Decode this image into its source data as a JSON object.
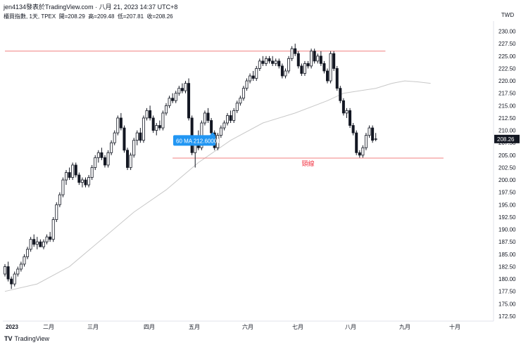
{
  "header": {
    "publisher": "jen4134發表於TradingView.com",
    "timestamp": "八月 21, 2023 14:37 UTC+8",
    "symbol": "櫃買指數, 1天, TPEX",
    "open_label": "開",
    "open": "208.29",
    "high_label": "高",
    "high": "209.48",
    "low_label": "低",
    "low": "207.81",
    "close_label": "收",
    "close": "208.26",
    "currency": "TWD"
  },
  "footer": {
    "brand": "TradingView",
    "brand_icon": "tradingview-logo-icon"
  },
  "colors": {
    "candle_up": "#ffffff",
    "candle_down": "#131722",
    "wick": "#131722",
    "ma": "#c8c8c8",
    "hline": "#f08080",
    "tooltip_bg": "#2196f3",
    "price_tag_bg": "#131722",
    "neckline_label": "#f23645",
    "grid": "#e0e3eb"
  },
  "chart_data": {
    "type": "candlestick",
    "x_axis_labels": [
      "2023",
      "二月",
      "三月",
      "四月",
      "五月",
      "六月",
      "七月",
      "八月",
      "九月",
      "十月"
    ],
    "ylim": [
      171.5,
      231.5
    ],
    "y_ticks": [
      "230.00",
      "227.50",
      "225.00",
      "222.50",
      "220.00",
      "217.50",
      "215.00",
      "212.50",
      "210.00",
      "207.50",
      "205.00",
      "202.50",
      "200.00",
      "197.50",
      "195.00",
      "192.50",
      "190.00",
      "187.50",
      "185.00",
      "182.50",
      "180.00",
      "177.50",
      "175.00",
      "172.50"
    ],
    "last_price": "208.26",
    "ohlc": [
      [
        181.0,
        183.0,
        180.5,
        182.5
      ],
      [
        182.5,
        183.5,
        179.5,
        180.0
      ],
      [
        180.0,
        180.5,
        178.0,
        179.0
      ],
      [
        179.0,
        181.5,
        178.5,
        181.0
      ],
      [
        181.0,
        182.5,
        180.5,
        182.0
      ],
      [
        182.0,
        183.5,
        181.5,
        183.0
      ],
      [
        183.0,
        185.0,
        182.5,
        184.5
      ],
      [
        184.5,
        186.5,
        184.0,
        186.0
      ],
      [
        186.0,
        188.5,
        185.5,
        188.0
      ],
      [
        188.0,
        189.0,
        186.5,
        187.0
      ],
      [
        187.0,
        188.5,
        186.0,
        187.5
      ],
      [
        187.5,
        188.0,
        186.5,
        186.5
      ],
      [
        186.5,
        188.0,
        186.0,
        187.5
      ],
      [
        187.5,
        189.0,
        187.0,
        188.5
      ],
      [
        188.5,
        189.5,
        187.5,
        188.0
      ],
      [
        188.0,
        192.5,
        187.5,
        192.0
      ],
      [
        192.0,
        195.5,
        191.5,
        195.0
      ],
      [
        195.0,
        197.5,
        194.5,
        197.0
      ],
      [
        197.0,
        200.5,
        196.5,
        200.0
      ],
      [
        200.0,
        202.0,
        199.0,
        201.5
      ],
      [
        201.5,
        202.5,
        200.0,
        200.5
      ],
      [
        200.5,
        203.5,
        200.0,
        203.0
      ],
      [
        203.0,
        203.5,
        200.5,
        201.0
      ],
      [
        201.0,
        201.5,
        199.0,
        199.5
      ],
      [
        199.5,
        200.5,
        198.5,
        200.0
      ],
      [
        200.0,
        200.5,
        198.5,
        199.0
      ],
      [
        199.0,
        201.0,
        198.5,
        200.5
      ],
      [
        200.5,
        203.0,
        200.0,
        202.5
      ],
      [
        202.5,
        205.0,
        202.0,
        204.5
      ],
      [
        204.5,
        206.0,
        203.5,
        205.5
      ],
      [
        205.5,
        206.5,
        204.0,
        204.5
      ],
      [
        204.5,
        205.0,
        202.5,
        203.0
      ],
      [
        203.0,
        206.0,
        202.5,
        205.5
      ],
      [
        205.5,
        208.0,
        205.0,
        207.5
      ],
      [
        207.5,
        210.0,
        207.0,
        209.5
      ],
      [
        209.5,
        213.0,
        209.0,
        212.5
      ],
      [
        212.5,
        213.5,
        210.0,
        210.5
      ],
      [
        210.5,
        211.0,
        205.5,
        206.0
      ],
      [
        206.0,
        206.5,
        202.0,
        202.5
      ],
      [
        202.5,
        205.5,
        202.0,
        205.0
      ],
      [
        205.0,
        208.5,
        204.5,
        208.0
      ],
      [
        208.0,
        210.0,
        207.0,
        209.5
      ],
      [
        209.5,
        210.5,
        207.5,
        208.0
      ],
      [
        208.0,
        213.0,
        207.5,
        212.5
      ],
      [
        212.5,
        214.5,
        212.0,
        214.0
      ],
      [
        214.0,
        215.0,
        212.0,
        212.5
      ],
      [
        212.5,
        213.0,
        209.5,
        210.0
      ],
      [
        210.0,
        211.5,
        209.0,
        211.0
      ],
      [
        211.0,
        212.0,
        210.0,
        210.5
      ],
      [
        210.5,
        214.0,
        210.0,
        213.5
      ],
      [
        213.5,
        215.5,
        213.0,
        215.0
      ],
      [
        215.0,
        217.0,
        214.5,
        216.5
      ],
      [
        216.5,
        217.5,
        215.5,
        216.0
      ],
      [
        216.0,
        218.0,
        215.5,
        217.5
      ],
      [
        217.5,
        219.0,
        217.0,
        218.5
      ],
      [
        218.5,
        219.5,
        217.5,
        218.0
      ],
      [
        218.0,
        220.0,
        217.5,
        219.5
      ],
      [
        219.5,
        220.5,
        212.0,
        212.5
      ],
      [
        212.5,
        213.0,
        205.0,
        205.5
      ],
      [
        205.5,
        208.5,
        202.5,
        208.0
      ],
      [
        208.0,
        210.0,
        206.0,
        206.5
      ],
      [
        206.5,
        212.0,
        206.0,
        211.5
      ],
      [
        211.5,
        214.0,
        211.0,
        213.5
      ],
      [
        213.5,
        214.5,
        211.5,
        212.0
      ],
      [
        212.0,
        212.5,
        209.0,
        209.5
      ],
      [
        209.5,
        210.0,
        206.0,
        206.5
      ],
      [
        206.5,
        209.5,
        206.0,
        209.0
      ],
      [
        209.0,
        211.0,
        208.5,
        210.5
      ],
      [
        210.5,
        212.0,
        210.0,
        211.5
      ],
      [
        211.5,
        213.5,
        211.0,
        213.0
      ],
      [
        213.0,
        214.0,
        211.5,
        212.0
      ],
      [
        212.0,
        214.5,
        211.5,
        214.0
      ],
      [
        214.0,
        216.0,
        213.5,
        215.5
      ],
      [
        215.5,
        217.0,
        215.0,
        216.5
      ],
      [
        216.5,
        219.0,
        216.0,
        218.5
      ],
      [
        218.5,
        220.5,
        218.0,
        220.0
      ],
      [
        220.0,
        221.5,
        219.5,
        221.0
      ],
      [
        221.0,
        222.0,
        220.0,
        220.5
      ],
      [
        220.5,
        223.0,
        220.0,
        222.5
      ],
      [
        222.5,
        224.5,
        222.0,
        224.0
      ],
      [
        224.0,
        225.0,
        223.0,
        223.5
      ],
      [
        223.5,
        225.0,
        223.0,
        224.5
      ],
      [
        224.5,
        225.0,
        223.5,
        224.0
      ],
      [
        224.0,
        225.0,
        223.0,
        223.5
      ],
      [
        223.5,
        224.5,
        223.0,
        224.0
      ],
      [
        224.0,
        224.5,
        222.5,
        223.0
      ],
      [
        223.0,
        223.5,
        220.5,
        221.0
      ],
      [
        221.0,
        222.5,
        220.5,
        222.0
      ],
      [
        222.0,
        225.0,
        221.5,
        224.5
      ],
      [
        224.5,
        227.0,
        224.0,
        226.5
      ],
      [
        226.5,
        227.5,
        225.0,
        225.5
      ],
      [
        225.5,
        226.0,
        222.5,
        223.0
      ],
      [
        223.0,
        223.5,
        221.0,
        221.5
      ],
      [
        221.5,
        224.0,
        221.0,
        223.5
      ],
      [
        223.5,
        224.0,
        222.5,
        223.0
      ],
      [
        223.0,
        226.5,
        222.5,
        226.0
      ],
      [
        226.0,
        226.5,
        223.5,
        224.0
      ],
      [
        224.0,
        225.5,
        223.5,
        225.0
      ],
      [
        225.0,
        226.0,
        223.0,
        223.5
      ],
      [
        223.5,
        224.0,
        221.5,
        222.0
      ],
      [
        222.0,
        222.5,
        219.5,
        220.0
      ],
      [
        220.0,
        226.0,
        219.5,
        225.5
      ],
      [
        225.5,
        226.0,
        222.0,
        222.5
      ],
      [
        222.5,
        223.0,
        218.0,
        218.5
      ],
      [
        218.5,
        219.0,
        215.5,
        216.0
      ],
      [
        216.0,
        216.5,
        213.0,
        213.5
      ],
      [
        213.5,
        214.5,
        212.5,
        214.0
      ],
      [
        214.0,
        214.5,
        210.5,
        211.0
      ],
      [
        211.0,
        211.5,
        209.0,
        209.5
      ],
      [
        209.5,
        210.0,
        205.0,
        205.5
      ],
      [
        205.5,
        206.0,
        204.5,
        205.0
      ],
      [
        205.0,
        207.0,
        204.5,
        206.5
      ],
      [
        206.5,
        209.5,
        206.0,
        209.0
      ],
      [
        209.0,
        211.0,
        208.5,
        210.5
      ],
      [
        210.5,
        211.0,
        207.5,
        208.0
      ],
      [
        208.29,
        209.48,
        207.81,
        208.26
      ]
    ],
    "ma_series_name": "60 MA",
    "ma_value_label": "60 MA 212.60001",
    "ma_anchor_index": 50,
    "ma_overlay": [
      [
        0,
        177.5
      ],
      [
        10,
        179.0
      ],
      [
        20,
        182.5
      ],
      [
        30,
        188.0
      ],
      [
        40,
        193.5
      ],
      [
        50,
        198.0
      ],
      [
        60,
        203.5
      ],
      [
        70,
        208.0
      ],
      [
        80,
        211.5
      ],
      [
        90,
        213.5
      ],
      [
        100,
        216.0
      ],
      [
        105,
        217.5
      ],
      [
        115,
        218.5
      ],
      [
        120,
        219.5
      ],
      [
        124,
        220.0
      ],
      [
        128,
        219.8
      ],
      [
        132,
        219.5
      ]
    ],
    "horizontal_lines": [
      {
        "name": "resistance",
        "value": 226.0,
        "from": 0,
        "to": 118,
        "label": ""
      },
      {
        "name": "neckline",
        "value": 204.4,
        "from": 52,
        "to": 136,
        "label": "頸線"
      }
    ]
  }
}
